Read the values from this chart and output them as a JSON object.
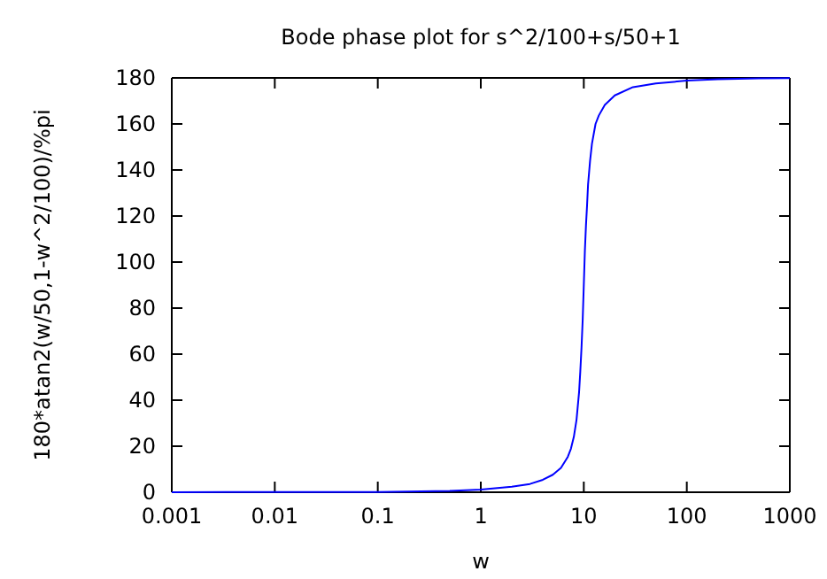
{
  "chart_data": {
    "type": "line",
    "title": "Bode phase plot for s^2/100+s/50+1",
    "xlabel": "w",
    "ylabel": "180*atan2(w/50,1-w^2/100)/%pi",
    "log": "x",
    "xlim": [
      0.001,
      1000
    ],
    "xticks": [
      0.001,
      0.01,
      0.1,
      1,
      10,
      100,
      1000
    ],
    "ylim": [
      0,
      180
    ],
    "yticks": [
      0,
      20,
      40,
      60,
      80,
      100,
      120,
      140,
      160,
      180
    ],
    "grid": false,
    "marker": "none",
    "line_style": "solid",
    "series": [
      {
        "color": "#0000ff",
        "x": [
          0.001,
          0.01,
          0.1,
          0.5,
          1,
          2,
          3,
          4,
          5,
          6,
          7,
          7.5,
          8,
          8.5,
          9,
          9.25,
          9.5,
          9.75,
          10,
          10.25,
          10.5,
          10.75,
          11,
          11.5,
          12,
          13,
          14,
          16,
          20,
          30,
          50,
          100,
          200,
          500,
          1000
        ],
        "values": [
          0,
          0.1,
          0.1,
          0.6,
          1.2,
          2.4,
          3.6,
          5.4,
          7.6,
          10.6,
          15.4,
          18.9,
          24.0,
          31.5,
          43.5,
          52.6,
          62.8,
          74.6,
          90,
          105.2,
          116,
          124.4,
          133.7,
          143.9,
          151.4,
          160.0,
          163.7,
          168.3,
          172.4,
          176.0,
          177.6,
          178.8,
          179.4,
          179.8,
          179.9
        ]
      }
    ]
  }
}
